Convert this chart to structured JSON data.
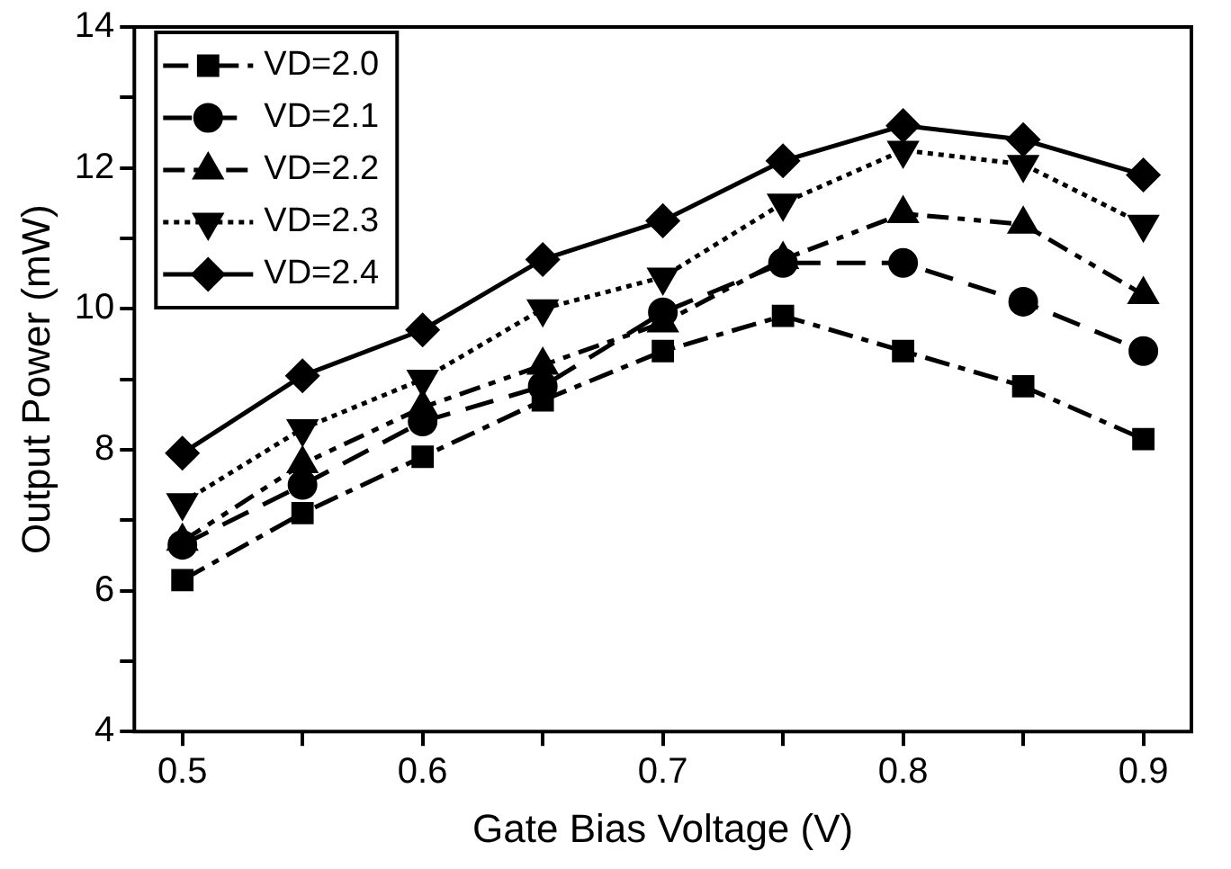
{
  "chart_data": {
    "type": "line",
    "xlabel": "Gate Bias Voltage (V)",
    "ylabel": "Output Power (mW)",
    "x": [
      0.5,
      0.55,
      0.6,
      0.65,
      0.7,
      0.75,
      0.8,
      0.85,
      0.9
    ],
    "xlim": [
      0.48,
      0.92
    ],
    "xticks": [
      0.5,
      {
        "value": 0.55,
        "label": null
      },
      0.6,
      {
        "value": 0.65,
        "label": null
      },
      0.7,
      {
        "value": 0.75,
        "label": null
      },
      0.8,
      {
        "value": 0.85,
        "label": null
      },
      0.9
    ],
    "ylim": [
      4,
      14
    ],
    "yticks": [
      4,
      {
        "value": 5,
        "label": null
      },
      6,
      {
        "value": 7,
        "label": null
      },
      8,
      {
        "value": 9,
        "label": null
      },
      10,
      {
        "value": 11,
        "label": null
      },
      12,
      {
        "value": 13,
        "label": null
      },
      14
    ],
    "grid": false,
    "legend": "top left",
    "series": [
      {
        "name": "VD=2.0",
        "color": "#000000",
        "marker": "square",
        "line_style": "dashed",
        "values": [
          6.15,
          7.1,
          7.9,
          8.7,
          9.4,
          9.9,
          9.4,
          8.9,
          8.15
        ]
      },
      {
        "name": "VD=2.1",
        "color": "#000000",
        "marker": "circle",
        "line_style": "dashed",
        "values": [
          6.65,
          7.5,
          8.4,
          8.9,
          9.95,
          10.65,
          10.65,
          10.1,
          9.4
        ]
      },
      {
        "name": "VD=2.2",
        "color": "#000000",
        "marker": "triangle",
        "line_style": "dashed",
        "values": [
          6.7,
          7.8,
          8.6,
          9.2,
          9.8,
          10.7,
          11.35,
          11.2,
          10.2
        ]
      },
      {
        "name": "VD=2.3",
        "color": "#000000",
        "marker": "triangle_down",
        "line_style": "dotted",
        "values": [
          7.25,
          8.3,
          9.0,
          10.0,
          10.45,
          11.5,
          12.25,
          12.05,
          11.2
        ]
      },
      {
        "name": "VD=2.4",
        "color": "#000000",
        "marker": "diamond",
        "line_style": "solid",
        "values": [
          7.95,
          9.05,
          9.7,
          10.7,
          11.25,
          12.1,
          12.6,
          12.4,
          11.9
        ]
      }
    ]
  }
}
